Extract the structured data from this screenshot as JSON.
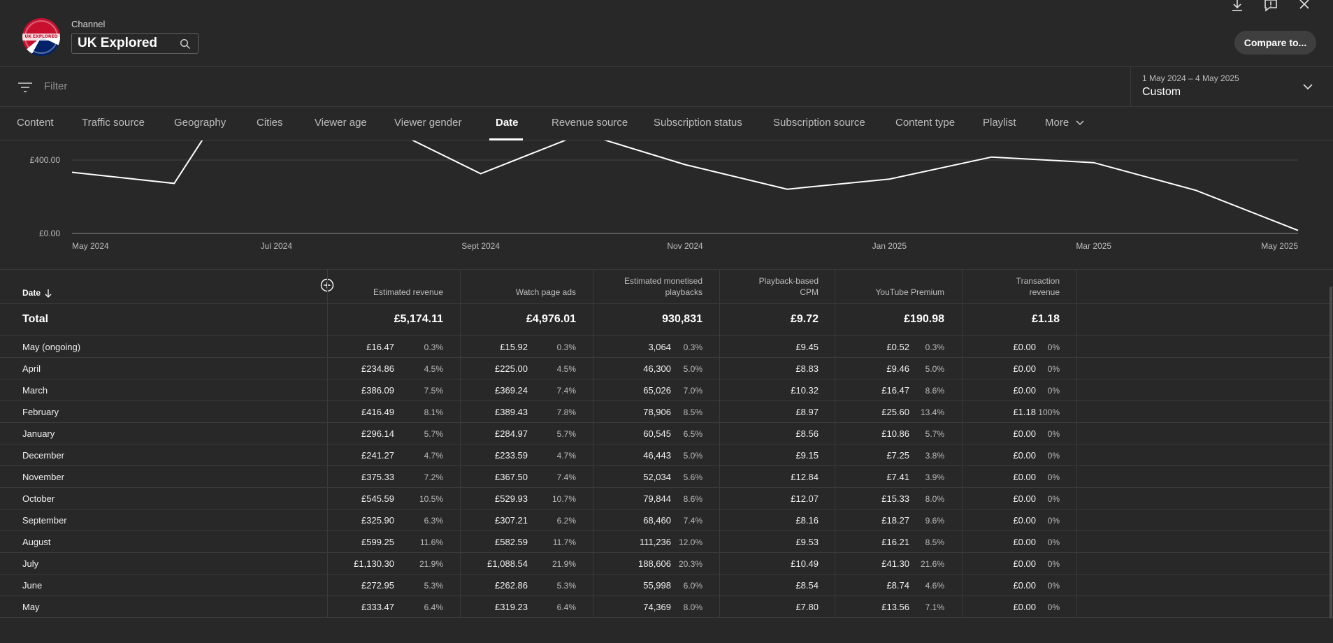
{
  "header": {
    "channel_label": "Channel",
    "channel_name": "UK Explored",
    "avatar_text": "UK EXPLORED",
    "compare_label": "Compare to..."
  },
  "filter": {
    "placeholder": "Filter",
    "date_range": "1 May 2024 – 4 May 2025",
    "date_mode": "Custom"
  },
  "tabs": [
    {
      "label": "Content",
      "active": false
    },
    {
      "label": "Traffic source",
      "active": false
    },
    {
      "label": "Geography",
      "active": false
    },
    {
      "label": "Cities",
      "active": false
    },
    {
      "label": "Viewer age",
      "active": false
    },
    {
      "label": "Viewer gender",
      "active": false
    },
    {
      "label": "Date",
      "active": true
    },
    {
      "label": "Revenue source",
      "active": false
    },
    {
      "label": "Subscription status",
      "active": false
    },
    {
      "label": "Subscription source",
      "active": false
    },
    {
      "label": "Content type",
      "active": false
    },
    {
      "label": "Playlist",
      "active": false
    },
    {
      "label": "More",
      "active": false
    }
  ],
  "chart_data": {
    "type": "line",
    "y_ticks": [
      "£400.00",
      "£0.00"
    ],
    "x_ticks": [
      "May 2024",
      "Jul 2024",
      "Sept 2024",
      "Nov 2024",
      "Jan 2025",
      "Mar 2025",
      "May 2025"
    ],
    "series": [
      {
        "values": [
          333.47,
          272.95,
          1130.3,
          599.25,
          325.9,
          545.59,
          375.33,
          241.27,
          296.14,
          416.49,
          386.09,
          234.86,
          16.47
        ]
      }
    ],
    "ylim": [
      0,
      600
    ],
    "grid": true
  },
  "table": {
    "headers": {
      "date": "Date",
      "estimated_revenue": "Estimated revenue",
      "watch_page_ads": "Watch page ads",
      "monetised_playbacks_1": "Estimated monetised",
      "monetised_playbacks_2": "playbacks",
      "cpm_1": "Playback-based",
      "cpm_2": "CPM",
      "premium": "YouTube Premium",
      "transaction_1": "Transaction",
      "transaction_2": "revenue"
    },
    "total": {
      "label": "Total",
      "revenue": "£5,174.11",
      "ads": "£4,976.01",
      "playbacks": "930,831",
      "cpm": "£9.72",
      "premium": "£190.98",
      "transaction": "£1.18"
    },
    "rows": [
      {
        "date": "May (ongoing)",
        "rev": "£16.47",
        "rev_p": "0.3%",
        "ads": "£15.92",
        "ads_p": "0.3%",
        "pb": "3,064",
        "pb_p": "0.3%",
        "cpm": "£9.45",
        "prem": "£0.52",
        "prem_p": "0.3%",
        "tr": "£0.00",
        "tr_p": "0%"
      },
      {
        "date": "April",
        "rev": "£234.86",
        "rev_p": "4.5%",
        "ads": "£225.00",
        "ads_p": "4.5%",
        "pb": "46,300",
        "pb_p": "5.0%",
        "cpm": "£8.83",
        "prem": "£9.46",
        "prem_p": "5.0%",
        "tr": "£0.00",
        "tr_p": "0%"
      },
      {
        "date": "March",
        "rev": "£386.09",
        "rev_p": "7.5%",
        "ads": "£369.24",
        "ads_p": "7.4%",
        "pb": "65,026",
        "pb_p": "7.0%",
        "cpm": "£10.32",
        "prem": "£16.47",
        "prem_p": "8.6%",
        "tr": "£0.00",
        "tr_p": "0%"
      },
      {
        "date": "February",
        "rev": "£416.49",
        "rev_p": "8.1%",
        "ads": "£389.43",
        "ads_p": "7.8%",
        "pb": "78,906",
        "pb_p": "8.5%",
        "cpm": "£8.97",
        "prem": "£25.60",
        "prem_p": "13.4%",
        "tr": "£1.18",
        "tr_p": "100%"
      },
      {
        "date": "January",
        "rev": "£296.14",
        "rev_p": "5.7%",
        "ads": "£284.97",
        "ads_p": "5.7%",
        "pb": "60,545",
        "pb_p": "6.5%",
        "cpm": "£8.56",
        "prem": "£10.86",
        "prem_p": "5.7%",
        "tr": "£0.00",
        "tr_p": "0%"
      },
      {
        "date": "December",
        "rev": "£241.27",
        "rev_p": "4.7%",
        "ads": "£233.59",
        "ads_p": "4.7%",
        "pb": "46,443",
        "pb_p": "5.0%",
        "cpm": "£9.15",
        "prem": "£7.25",
        "prem_p": "3.8%",
        "tr": "£0.00",
        "tr_p": "0%"
      },
      {
        "date": "November",
        "rev": "£375.33",
        "rev_p": "7.2%",
        "ads": "£367.50",
        "ads_p": "7.4%",
        "pb": "52,034",
        "pb_p": "5.6%",
        "cpm": "£12.84",
        "prem": "£7.41",
        "prem_p": "3.9%",
        "tr": "£0.00",
        "tr_p": "0%"
      },
      {
        "date": "October",
        "rev": "£545.59",
        "rev_p": "10.5%",
        "ads": "£529.93",
        "ads_p": "10.7%",
        "pb": "79,844",
        "pb_p": "8.6%",
        "cpm": "£12.07",
        "prem": "£15.33",
        "prem_p": "8.0%",
        "tr": "£0.00",
        "tr_p": "0%"
      },
      {
        "date": "September",
        "rev": "£325.90",
        "rev_p": "6.3%",
        "ads": "£307.21",
        "ads_p": "6.2%",
        "pb": "68,460",
        "pb_p": "7.4%",
        "cpm": "£8.16",
        "prem": "£18.27",
        "prem_p": "9.6%",
        "tr": "£0.00",
        "tr_p": "0%"
      },
      {
        "date": "August",
        "rev": "£599.25",
        "rev_p": "11.6%",
        "ads": "£582.59",
        "ads_p": "11.7%",
        "pb": "111,236",
        "pb_p": "12.0%",
        "cpm": "£9.53",
        "prem": "£16.21",
        "prem_p": "8.5%",
        "tr": "£0.00",
        "tr_p": "0%"
      },
      {
        "date": "July",
        "rev": "£1,130.30",
        "rev_p": "21.9%",
        "ads": "£1,088.54",
        "ads_p": "21.9%",
        "pb": "188,606",
        "pb_p": "20.3%",
        "cpm": "£10.49",
        "prem": "£41.30",
        "prem_p": "21.6%",
        "tr": "£0.00",
        "tr_p": "0%"
      },
      {
        "date": "June",
        "rev": "£272.95",
        "rev_p": "5.3%",
        "ads": "£262.86",
        "ads_p": "5.3%",
        "pb": "55,998",
        "pb_p": "6.0%",
        "cpm": "£8.54",
        "prem": "£8.74",
        "prem_p": "4.6%",
        "tr": "£0.00",
        "tr_p": "0%"
      },
      {
        "date": "May",
        "rev": "£333.47",
        "rev_p": "6.4%",
        "ads": "£319.23",
        "ads_p": "6.4%",
        "pb": "74,369",
        "pb_p": "8.0%",
        "cpm": "£7.80",
        "prem": "£13.56",
        "prem_p": "7.1%",
        "tr": "£0.00",
        "tr_p": "0%"
      }
    ]
  },
  "icons": {
    "download": "download-icon",
    "feedback": "feedback-icon",
    "close": "close-icon",
    "search": "search-icon",
    "filter": "filter-icon",
    "sort": "arrow-down-icon",
    "add_metric": "add-circle-icon"
  }
}
